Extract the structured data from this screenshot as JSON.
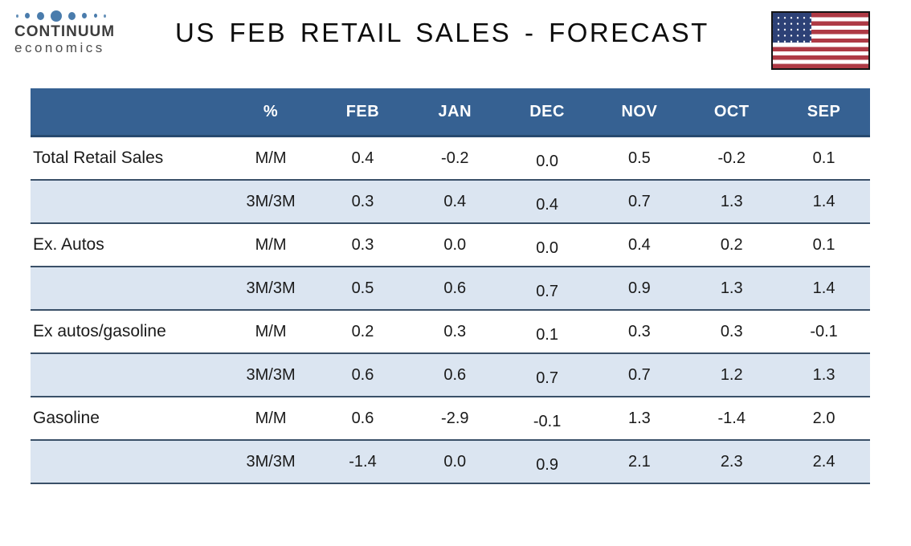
{
  "logo": {
    "icon": "dots-logo-icon",
    "name": "CONTINUUM",
    "tagline": "economics"
  },
  "flag": {
    "icon": "us-flag-icon"
  },
  "colors": {
    "header_bg": "#366192",
    "alt_row_bg": "#dbe5f1",
    "row_border": "#3a5068",
    "logo_dot": "#4a7cac",
    "flag_red": "#ae3a45",
    "flag_blue": "#2d4176"
  },
  "chart_data": {
    "type": "table",
    "title": "US FEB RETAIL SALES - FORECAST",
    "columns": [
      "",
      "%",
      "FEB",
      "JAN",
      "DEC",
      "NOV",
      "OCT",
      "SEP"
    ],
    "rows": [
      {
        "label": "Total Retail Sales",
        "measure": "M/M",
        "values": [
          "0.4",
          "-0.2",
          "0.0",
          "0.5",
          "-0.2",
          "0.1"
        ]
      },
      {
        "label": "",
        "measure": "3M/3M",
        "values": [
          "0.3",
          "0.4",
          "0.4",
          "0.7",
          "1.3",
          "1.4"
        ]
      },
      {
        "label": "Ex. Autos",
        "measure": "M/M",
        "values": [
          "0.3",
          "0.0",
          "0.0",
          "0.4",
          "0.2",
          "0.1"
        ]
      },
      {
        "label": "",
        "measure": "3M/3M",
        "values": [
          "0.5",
          "0.6",
          "0.7",
          "0.9",
          "1.3",
          "1.4"
        ]
      },
      {
        "label": "Ex autos/gasoline",
        "measure": "M/M",
        "values": [
          "0.2",
          "0.3",
          "0.1",
          "0.3",
          "0.3",
          "-0.1"
        ]
      },
      {
        "label": "",
        "measure": "3M/3M",
        "values": [
          "0.6",
          "0.6",
          "0.7",
          "0.7",
          "1.2",
          "1.3"
        ]
      },
      {
        "label": "Gasoline",
        "measure": "M/M",
        "values": [
          "0.6",
          "-2.9",
          "-0.1",
          "1.3",
          "-1.4",
          "2.0"
        ]
      },
      {
        "label": "",
        "measure": "3M/3M",
        "values": [
          "-1.4",
          "0.0",
          "0.9",
          "2.1",
          "2.3",
          "2.4"
        ]
      }
    ]
  }
}
